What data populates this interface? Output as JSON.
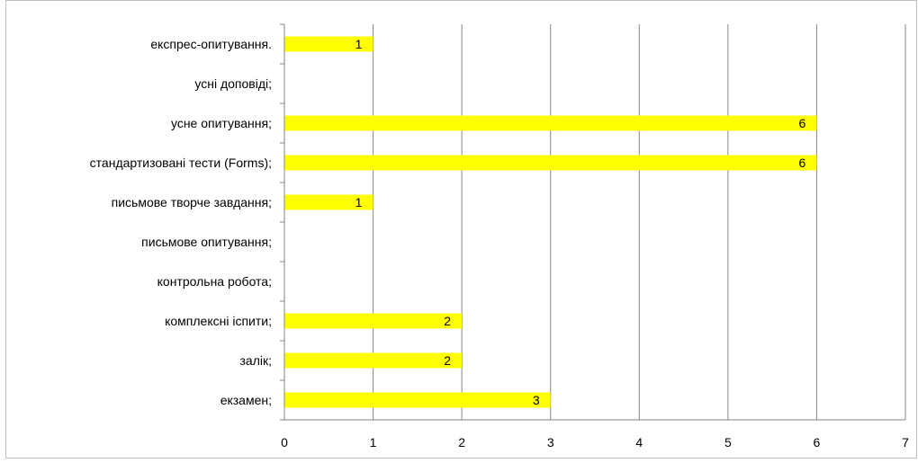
{
  "chart_data": {
    "type": "bar",
    "orientation": "horizontal",
    "categories": [
      "екзамен;",
      "залік;",
      "комплексні іспити;",
      "контрольна робота;",
      "письмове опитування;",
      "письмове творче завдання;",
      "стандартизовані тести (Forms);",
      "усне опитування;",
      "усні доповіді;",
      "експрес-опитування."
    ],
    "values": [
      3,
      2,
      2,
      null,
      null,
      1,
      6,
      6,
      null,
      1
    ],
    "xlim": [
      0,
      7
    ],
    "x_ticks": [
      "0",
      "1",
      "2",
      "3",
      "4",
      "5",
      "6",
      "7"
    ],
    "grid": "vertical",
    "bar_color": "#ffff00",
    "data_labels": true,
    "title": "",
    "xlabel": "",
    "ylabel": ""
  }
}
